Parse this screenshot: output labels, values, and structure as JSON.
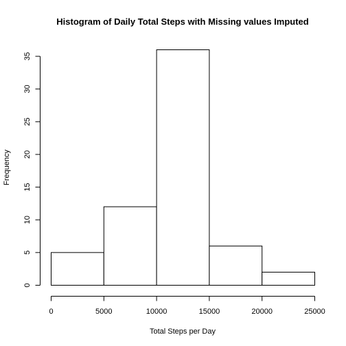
{
  "chart_data": {
    "type": "bar",
    "title": "Histogram of Daily Total Steps with Missing values Imputed",
    "xlabel": "Total Steps per Day",
    "ylabel": "Frequency",
    "bins": [
      {
        "start": 0,
        "end": 5000,
        "count": 5
      },
      {
        "start": 5000,
        "end": 10000,
        "count": 12
      },
      {
        "start": 10000,
        "end": 15000,
        "count": 36
      },
      {
        "start": 15000,
        "end": 20000,
        "count": 6
      },
      {
        "start": 20000,
        "end": 25000,
        "count": 2
      }
    ],
    "xticks": [
      0,
      5000,
      10000,
      15000,
      20000,
      25000
    ],
    "yticks": [
      0,
      5,
      10,
      15,
      20,
      25,
      30,
      35
    ],
    "xlim": [
      0,
      25000
    ],
    "ylim": [
      0,
      36
    ],
    "grid": false,
    "legend": "none"
  }
}
